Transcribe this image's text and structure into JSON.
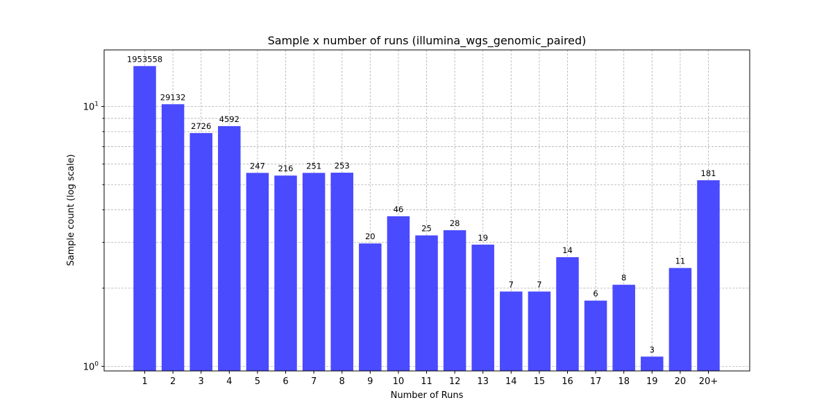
{
  "chart_data": {
    "type": "bar",
    "title": "Sample x number of runs (illumina_wgs_genomic_paired)",
    "xlabel": "Number of Runs",
    "ylabel": "Sample count (log scale)",
    "yscale": "log",
    "ylim": [
      0.96,
      16.5
    ],
    "grid": true,
    "bar_color": "#4a4aff",
    "y_major_ticks": [
      {
        "value": 1,
        "label": "10^0"
      },
      {
        "value": 10,
        "label": "10^1"
      }
    ],
    "y_minor_ticks": [
      2,
      3,
      4,
      5,
      6,
      7,
      8,
      9
    ],
    "categories": [
      "1",
      "2",
      "3",
      "4",
      "5",
      "6",
      "7",
      "8",
      "9",
      "10",
      "11",
      "12",
      "13",
      "14",
      "15",
      "16",
      "17",
      "18",
      "19",
      "20",
      "20+"
    ],
    "values": [
      14.3,
      10.2,
      7.9,
      8.4,
      5.55,
      5.42,
      5.55,
      5.56,
      2.97,
      3.78,
      3.19,
      3.34,
      2.94,
      1.94,
      1.94,
      2.63,
      1.79,
      2.06,
      1.09,
      2.39,
      5.2
    ],
    "data_labels": [
      "1953558",
      "29132",
      "2726",
      "4592",
      "247",
      "216",
      "251",
      "253",
      "20",
      "46",
      "25",
      "28",
      "19",
      "7",
      "7",
      "14",
      "6",
      "8",
      "3",
      "11",
      "181"
    ]
  }
}
